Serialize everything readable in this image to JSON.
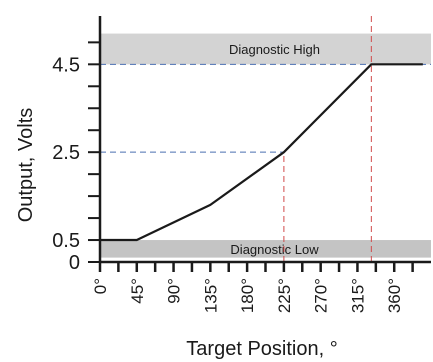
{
  "chart_data": {
    "type": "line",
    "title": "",
    "xlabel": "Target Position, °",
    "ylabel": "Output, Volts",
    "xlim": [
      0,
      405
    ],
    "ylim": [
      0,
      5.6
    ],
    "x_ticks": [
      0,
      45,
      90,
      135,
      180,
      225,
      270,
      315,
      360
    ],
    "x_tick_labels": [
      "0°",
      "45°",
      "90°",
      "135°",
      "180°",
      "225°",
      "270°",
      "315°",
      "360°"
    ],
    "x_minor_ticks": [
      22.5,
      67.5,
      112.5,
      157.5,
      202.5,
      247.5,
      292.5,
      337.5,
      382.5
    ],
    "y_ticks": [
      0,
      0.5,
      2.5,
      4.5
    ],
    "y_tick_labels": [
      "0",
      "0.5",
      "2.5",
      "4.5"
    ],
    "y_minor_ticks": [
      1,
      1.5,
      2,
      3,
      3.5,
      4,
      5
    ],
    "grid": false,
    "series": [
      {
        "name": "",
        "color": "#1a1a1a",
        "x": [
          0,
          45,
          135,
          225,
          332,
          395
        ],
        "y": [
          0.5,
          0.5,
          1.3,
          2.5,
          4.5,
          4.5
        ]
      }
    ],
    "bands": [
      {
        "label": "Diagnostic High",
        "y_from": 4.5,
        "y_to": 5.2,
        "color": "#d3d3d3"
      },
      {
        "label": "Diagnostic Low",
        "y_from": 0.1,
        "y_to": 0.5,
        "color": "#c4c4c4"
      }
    ],
    "reference_lines": [
      {
        "axis": "y",
        "value": 4.5,
        "x_to": 405,
        "color": "#4a6fb0",
        "style": "dashed"
      },
      {
        "axis": "y",
        "value": 2.5,
        "x_to": 225,
        "color": "#4a6fb0",
        "style": "dashed"
      },
      {
        "axis": "x",
        "value": 225,
        "y_to": 2.5,
        "color": "#d14a4a",
        "style": "dashed"
      },
      {
        "axis": "x",
        "value": 332,
        "y_to": 5.6,
        "color": "#d14a4a",
        "style": "dashed"
      }
    ]
  }
}
